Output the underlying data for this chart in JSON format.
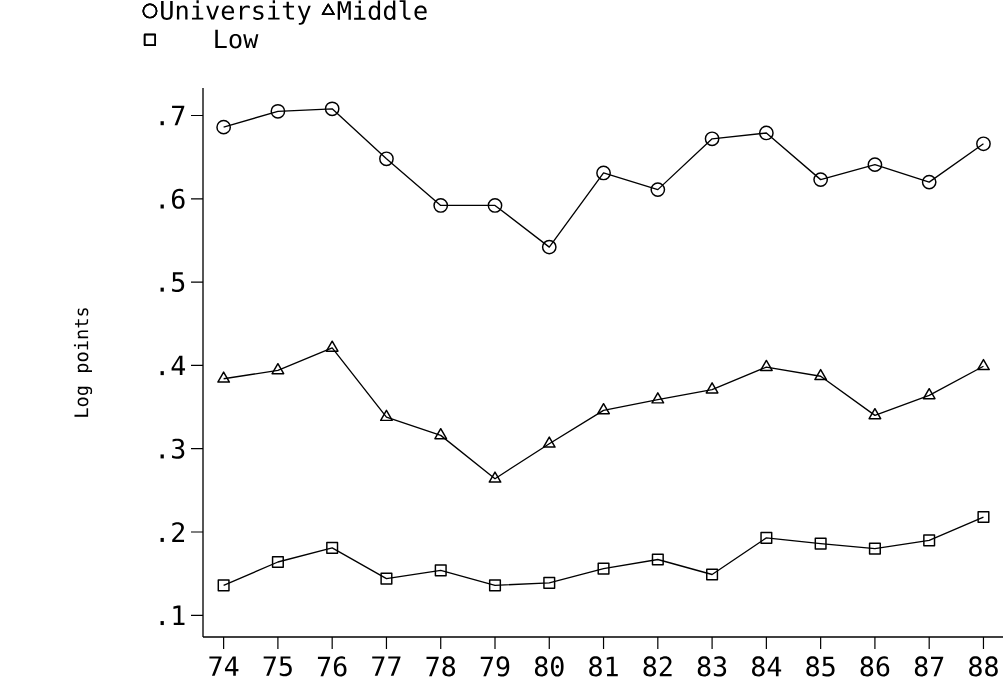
{
  "chart_data": {
    "type": "line",
    "ylabel": "Log points",
    "x": [
      74,
      75,
      76,
      77,
      78,
      79,
      80,
      81,
      82,
      83,
      84,
      85,
      86,
      87,
      88
    ],
    "series": [
      {
        "name": "University",
        "color": "#000000",
        "marker": "circle",
        "values": [
          0.686,
          0.705,
          0.708,
          0.648,
          0.592,
          0.592,
          0.542,
          0.631,
          0.611,
          0.672,
          0.679,
          0.623,
          0.641,
          0.62,
          0.666
        ]
      },
      {
        "name": "Middle",
        "color": "#000000",
        "marker": "triangle",
        "values": [
          0.384,
          0.394,
          0.421,
          0.338,
          0.316,
          0.264,
          0.306,
          0.346,
          0.359,
          0.371,
          0.398,
          0.387,
          0.34,
          0.364,
          0.399
        ]
      },
      {
        "name": "Low",
        "color": "#000000",
        "marker": "square",
        "values": [
          0.136,
          0.164,
          0.181,
          0.144,
          0.154,
          0.136,
          0.139,
          0.156,
          0.167,
          0.149,
          0.193,
          0.186,
          0.18,
          0.19,
          0.218
        ]
      }
    ],
    "xlim": [
      73.62,
      88.36
    ],
    "xticks": [
      74,
      75,
      76,
      77,
      78,
      79,
      80,
      81,
      82,
      83,
      84,
      85,
      86,
      87,
      88
    ],
    "ylim": [
      0.074,
      0.733
    ],
    "yticks": [
      {
        "value": 0.1,
        "label": ".1"
      },
      {
        "value": 0.2,
        "label": ".2"
      },
      {
        "value": 0.3,
        "label": ".3"
      },
      {
        "value": 0.4,
        "label": ".4"
      },
      {
        "value": 0.5,
        "label": ".5"
      },
      {
        "value": 0.6,
        "label": ".6"
      },
      {
        "value": 0.7,
        "label": ".7"
      }
    ],
    "legend": "top",
    "grid": false
  }
}
